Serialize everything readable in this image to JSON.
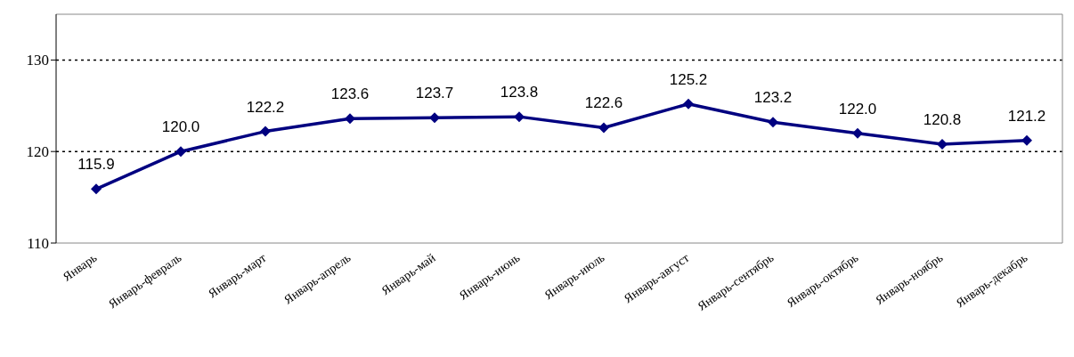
{
  "chart_data": {
    "type": "line",
    "categories": [
      "Январь",
      "Январь-февраль",
      "Январь-март",
      "Январь-апрель",
      "Январь-май",
      "Январь-июнь",
      "Январь-июль",
      "Январь-август",
      "Январь-сентябрь",
      "Январь-октябрь",
      "Январь-ноябрь",
      "Январь-декабрь"
    ],
    "series": [
      {
        "color": "#000080",
        "values": [
          115.9,
          120.0,
          122.2,
          123.6,
          123.7,
          123.8,
          122.6,
          125.2,
          123.2,
          122.0,
          120.8,
          121.2
        ],
        "value_labels": [
          "115.9",
          "120.0",
          "122.2",
          "123.6",
          "123.7",
          "123.8",
          "122.6",
          "125.2",
          "123.2",
          "122.0",
          "120.8",
          "121.2"
        ]
      }
    ],
    "ylim": [
      110,
      135
    ],
    "yticks": [
      110,
      120,
      130
    ],
    "grid": "y",
    "marker": "diamond",
    "line_style": "solid"
  }
}
